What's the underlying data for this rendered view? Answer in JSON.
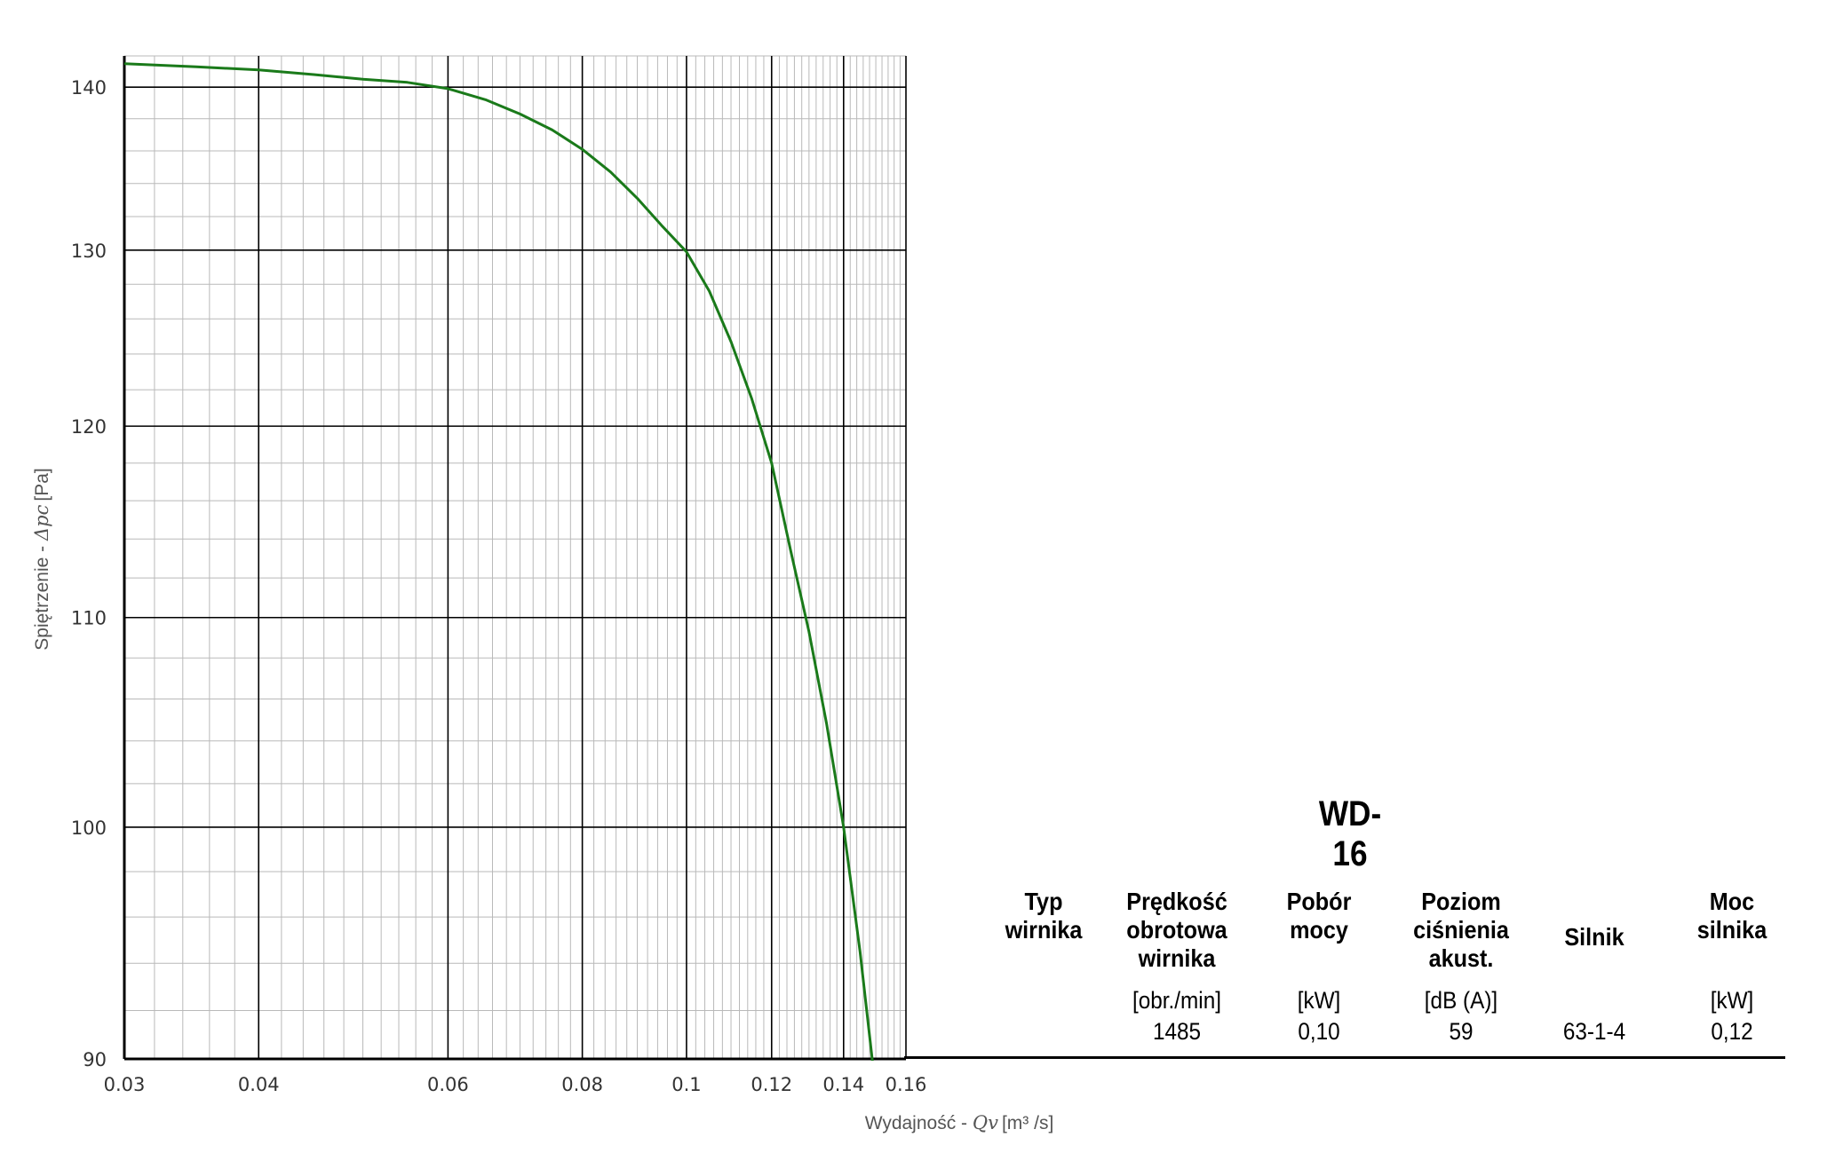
{
  "chart_data": {
    "type": "line",
    "title": "",
    "xlabel": {
      "prefix": "Wydajność - ",
      "symbol": "Qv",
      "unit": "[m³ /s]"
    },
    "ylabel": {
      "prefix": "Spiętrzenie - ",
      "symbol": "Δpc",
      "unit": "[Pa]"
    },
    "x_scale": "log",
    "y_scale": "log",
    "xlim": [
      0.03,
      0.16
    ],
    "ylim": [
      90,
      142
    ],
    "x_ticks": [
      "0.03",
      "0.04",
      "0.06",
      "0.08",
      "0.1",
      "0.12",
      "0.14",
      "0.16"
    ],
    "y_ticks": [
      "90",
      "100",
      "110",
      "120",
      "130",
      "140"
    ],
    "grid": true,
    "series": [
      {
        "color": "#1a7a1a",
        "x": [
          0.03,
          0.035,
          0.04,
          0.045,
          0.05,
          0.055,
          0.06,
          0.065,
          0.07,
          0.075,
          0.08,
          0.085,
          0.09,
          0.095,
          0.1,
          0.105,
          0.11,
          0.115,
          0.12,
          0.125,
          0.13,
          0.135,
          0.14,
          0.145,
          0.149
        ],
        "y": [
          141.5,
          141.3,
          141.1,
          140.8,
          140.5,
          140.3,
          139.9,
          139.2,
          138.3,
          137.3,
          136.1,
          134.7,
          133.1,
          131.4,
          129.9,
          127.6,
          124.7,
          121.5,
          118.0,
          113.4,
          109.3,
          104.8,
          100.0,
          94.5,
          89.8
        ]
      }
    ]
  },
  "table": {
    "model": "WD-16",
    "headers": [
      "Typ\nwirnika",
      "Prędkość\nobrotowa\nwirnika",
      "Pobór\nmocy",
      "Poziom\nciśnienia\nakust.",
      "Silnik",
      "Moc\nsilnika"
    ],
    "units": [
      "",
      "[obr./min]",
      "[kW]",
      "[dB (A)]",
      "",
      "[kW]"
    ],
    "values": [
      "",
      "1485",
      "0,10",
      "59",
      "63-1-4",
      "0,12"
    ]
  }
}
